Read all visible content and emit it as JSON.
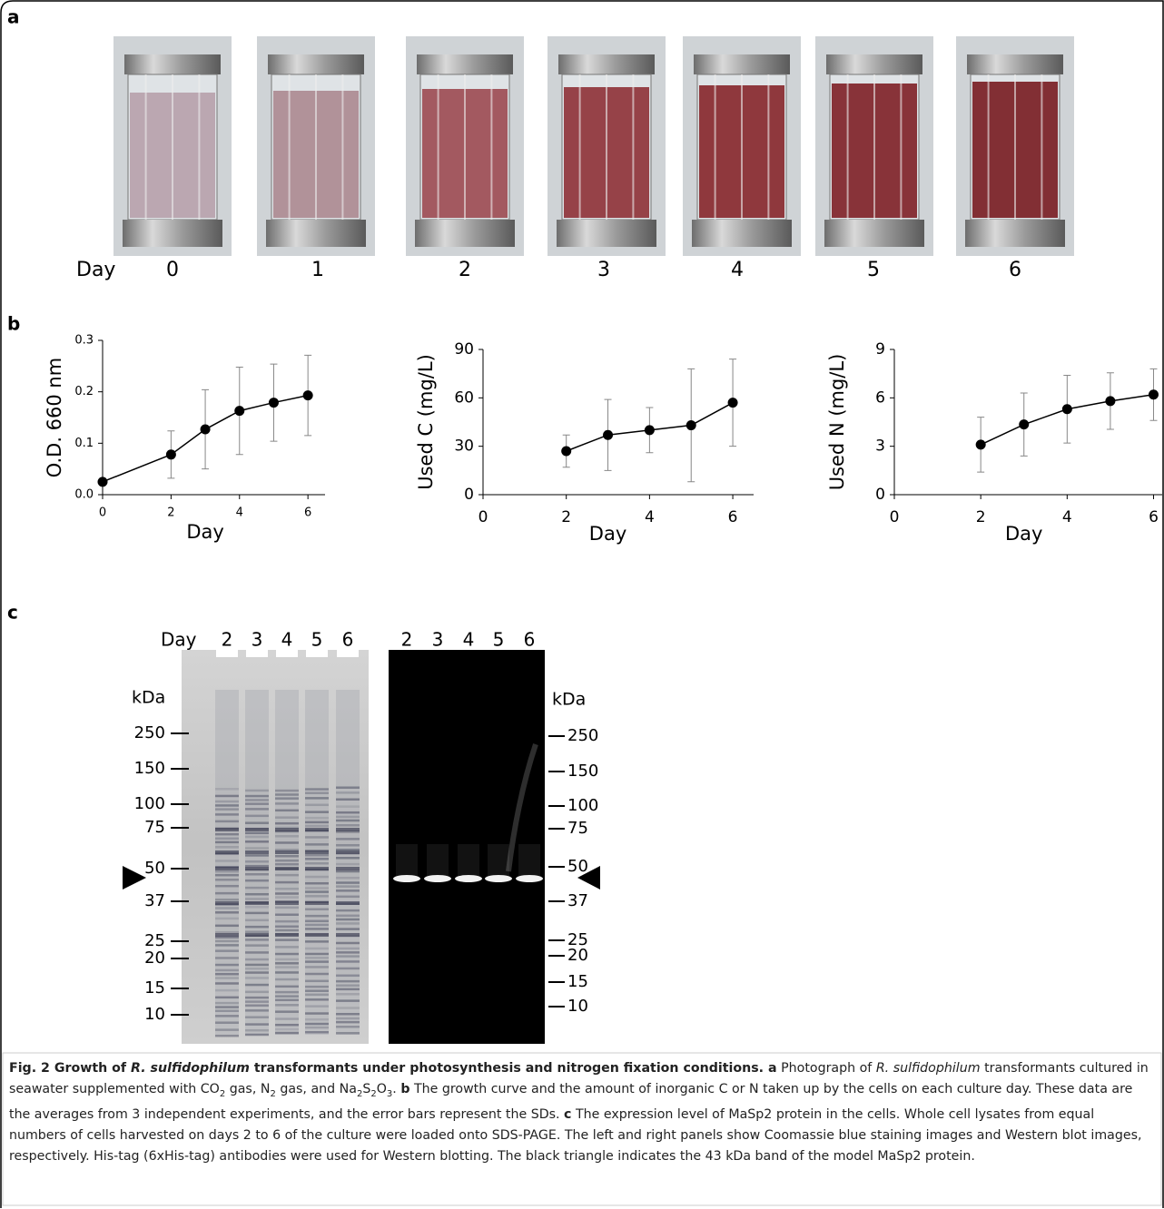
{
  "panel_a": {
    "label": "a",
    "day_label": "Day",
    "days": [
      "0",
      "1",
      "2",
      "3",
      "4",
      "5",
      "6"
    ]
  },
  "panel_b": {
    "label": "b"
  },
  "chart_data": [
    {
      "type": "line",
      "ylabel": "O.D. 660 nm",
      "xlabel": "Day",
      "color": "#000000",
      "x": [
        0,
        2,
        3,
        4,
        5,
        6
      ],
      "values": [
        0.025,
        0.078,
        0.127,
        0.163,
        0.179,
        0.193
      ],
      "errors": [
        null,
        0.046,
        0.077,
        0.085,
        0.075,
        0.078
      ],
      "xlim": [
        0,
        6.5
      ],
      "xticks": [
        0,
        2,
        4,
        6
      ],
      "ylim": [
        0,
        0.3
      ],
      "yticks": [
        {
          "value": 0,
          "label": "0.0"
        },
        0.1,
        0.2,
        0.3
      ]
    },
    {
      "type": "line",
      "ylabel": "Used C (mg/L)",
      "xlabel": "Day",
      "color": "#000000",
      "x": [
        2,
        3,
        4,
        5,
        6
      ],
      "values": [
        27,
        37,
        40,
        43,
        57
      ],
      "errors": [
        10,
        22,
        14,
        35,
        27
      ],
      "xlim": [
        0,
        6.5
      ],
      "xticks": [
        0,
        2,
        4,
        6
      ],
      "ylim": [
        0,
        90
      ],
      "yticks": [
        0,
        30,
        60,
        90
      ]
    },
    {
      "type": "line",
      "ylabel": "Used N (mg/L)",
      "xlabel": "Day",
      "color": "#000000",
      "x": [
        2,
        3,
        4,
        5,
        6
      ],
      "values": [
        3.1,
        4.35,
        5.3,
        5.8,
        6.2
      ],
      "errors": [
        1.7,
        1.95,
        2.1,
        1.75,
        1.6
      ],
      "xlim": [
        0,
        6.2
      ],
      "xticks": [
        0,
        2,
        4,
        6
      ],
      "ylim": [
        0,
        9
      ],
      "yticks": [
        0,
        3,
        6,
        9
      ]
    }
  ],
  "panel_c": {
    "label": "c",
    "day_label": "Day",
    "lanes_left": [
      "2",
      "3",
      "4",
      "5",
      "6"
    ],
    "lanes_right": [
      "2",
      "3",
      "4",
      "5",
      "6"
    ],
    "kda_left": "kDa",
    "kda_right": "kDa",
    "markers_left": [
      "250",
      "150",
      "100",
      "75",
      "50",
      "37",
      "25",
      "20",
      "15",
      "10"
    ],
    "markers_right": [
      "250",
      "150",
      "100",
      "75",
      "50",
      "37",
      "25",
      "20",
      "15",
      "10"
    ]
  },
  "caption": [
    "Fig. 2 Growth of ",
    "R. sulfidophilum",
    " transformants under photosynthesis and nitrogen fixation conditions.",
    " a",
    " Photograph of ",
    "R. sulfidophilum",
    " transformants cultured in seawater supplemented with CO",
    "2",
    " gas, N",
    "2",
    " gas, and Na",
    "2",
    "S",
    "2",
    "O",
    "3",
    ". ",
    "b",
    " The growth curve and the amount of inorganic C or N taken up by the cells on each culture day. These data are the averages from 3 independent experiments, and the error bars represent the SDs. ",
    "c",
    " The expression level of MaSp2 protein in the cells. Whole cell lysates from equal numbers of cells harvested on days 2 to 6 of the culture were loaded onto SDS-PAGE. The left and right panels show Coomassie blue staining images and Western blot images, respectively. His-tag (6xHis-tag) antibodies were used for Western blotting. The black triangle indicates the 43 kDa band of the model MaSp2 protein."
  ]
}
